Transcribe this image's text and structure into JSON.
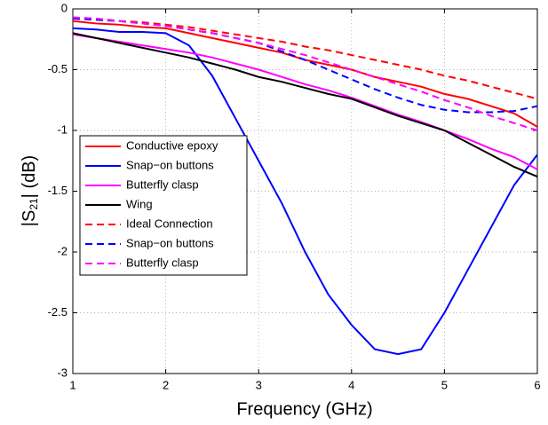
{
  "chart_data": {
    "type": "line",
    "xlabel": "Frequency (GHz)",
    "ylabel_parts": [
      "|S",
      "21",
      "| (dB)"
    ],
    "x": [
      1,
      1.25,
      1.5,
      1.75,
      2,
      2.25,
      2.5,
      2.75,
      3,
      3.25,
      3.5,
      3.75,
      4,
      4.25,
      4.5,
      4.75,
      5,
      5.25,
      5.5,
      5.75,
      6
    ],
    "series": [
      {
        "name": "Conductive epoxy",
        "color": "#ff0000",
        "linestyle": "solid",
        "values": [
          -0.1,
          -0.12,
          -0.13,
          -0.15,
          -0.16,
          -0.2,
          -0.24,
          -0.28,
          -0.32,
          -0.36,
          -0.42,
          -0.46,
          -0.5,
          -0.56,
          -0.6,
          -0.64,
          -0.7,
          -0.74,
          -0.8,
          -0.86,
          -0.97
        ]
      },
      {
        "name": "Snap−on buttons",
        "color": "#0000ff",
        "linestyle": "solid",
        "values": [
          -0.16,
          -0.17,
          -0.19,
          -0.19,
          -0.2,
          -0.3,
          -0.55,
          -0.9,
          -1.25,
          -1.6,
          -2.0,
          -2.35,
          -2.6,
          -2.8,
          -2.84,
          -2.8,
          -2.5,
          -2.15,
          -1.8,
          -1.45,
          -1.2
        ]
      },
      {
        "name": "Butterfly clasp",
        "color": "#ff00ff",
        "linestyle": "solid",
        "values": [
          -0.21,
          -0.24,
          -0.27,
          -0.3,
          -0.33,
          -0.36,
          -0.4,
          -0.45,
          -0.5,
          -0.56,
          -0.62,
          -0.67,
          -0.73,
          -0.8,
          -0.87,
          -0.93,
          -1.0,
          -1.07,
          -1.15,
          -1.22,
          -1.32
        ]
      },
      {
        "name": "Wing",
        "color": "#000000",
        "linestyle": "solid",
        "values": [
          -0.2,
          -0.24,
          -0.28,
          -0.32,
          -0.36,
          -0.4,
          -0.45,
          -0.5,
          -0.56,
          -0.6,
          -0.65,
          -0.7,
          -0.74,
          -0.81,
          -0.88,
          -0.94,
          -1.0,
          -1.1,
          -1.2,
          -1.3,
          -1.38
        ]
      },
      {
        "name": "Ideal Connection",
        "color": "#ff0000",
        "linestyle": "dashed",
        "values": [
          -0.07,
          -0.08,
          -0.1,
          -0.11,
          -0.13,
          -0.15,
          -0.18,
          -0.21,
          -0.24,
          -0.27,
          -0.31,
          -0.34,
          -0.38,
          -0.42,
          -0.46,
          -0.5,
          -0.55,
          -0.59,
          -0.64,
          -0.69,
          -0.74
        ]
      },
      {
        "name": "Snap−on buttons",
        "color": "#0000ff",
        "linestyle": "dashed",
        "values": [
          -0.08,
          -0.09,
          -0.1,
          -0.12,
          -0.14,
          -0.17,
          -0.2,
          -0.24,
          -0.28,
          -0.35,
          -0.42,
          -0.5,
          -0.58,
          -0.66,
          -0.73,
          -0.79,
          -0.83,
          -0.85,
          -0.85,
          -0.84,
          -0.8
        ]
      },
      {
        "name": "Butterfly clasp",
        "color": "#ff00ff",
        "linestyle": "dashed",
        "values": [
          -0.07,
          -0.08,
          -0.1,
          -0.12,
          -0.14,
          -0.17,
          -0.2,
          -0.24,
          -0.28,
          -0.33,
          -0.38,
          -0.44,
          -0.5,
          -0.56,
          -0.62,
          -0.68,
          -0.75,
          -0.81,
          -0.88,
          -0.94,
          -1.0
        ]
      }
    ],
    "xlim": [
      1,
      6
    ],
    "xticks": [
      1,
      2,
      3,
      4,
      5,
      6
    ],
    "ylim": [
      -3,
      0
    ],
    "yticks": [
      0,
      -0.5,
      -1,
      -1.5,
      -2,
      -2.5,
      -3
    ],
    "grid": true,
    "legend": "center left"
  }
}
